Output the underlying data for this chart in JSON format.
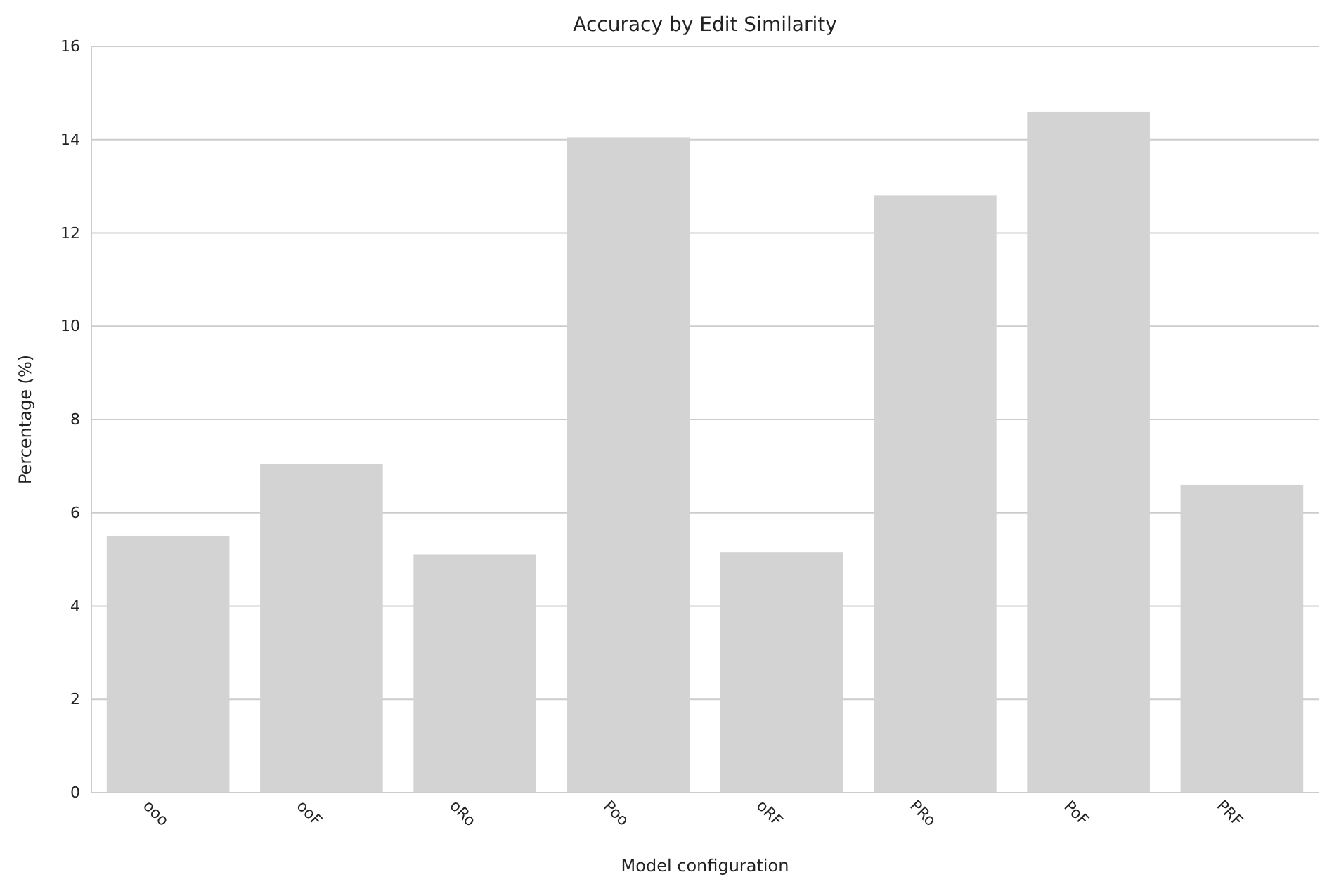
{
  "chart_data": {
    "type": "bar",
    "title": "Accuracy by Edit Similarity",
    "xlabel": "Model configuration",
    "ylabel": "Percentage (%)",
    "categories": [
      "ooo",
      "ooF",
      "oRo",
      "Poo",
      "oRF",
      "PRo",
      "PoF",
      "PRF"
    ],
    "values": [
      5.5,
      7.05,
      5.1,
      14.05,
      5.15,
      12.8,
      14.6,
      6.6
    ],
    "color": "#d3d3d3",
    "ylim": [
      0,
      16
    ],
    "yticks": [
      0,
      2,
      4,
      6,
      8,
      10,
      12,
      14,
      16
    ],
    "grid": "y"
  }
}
